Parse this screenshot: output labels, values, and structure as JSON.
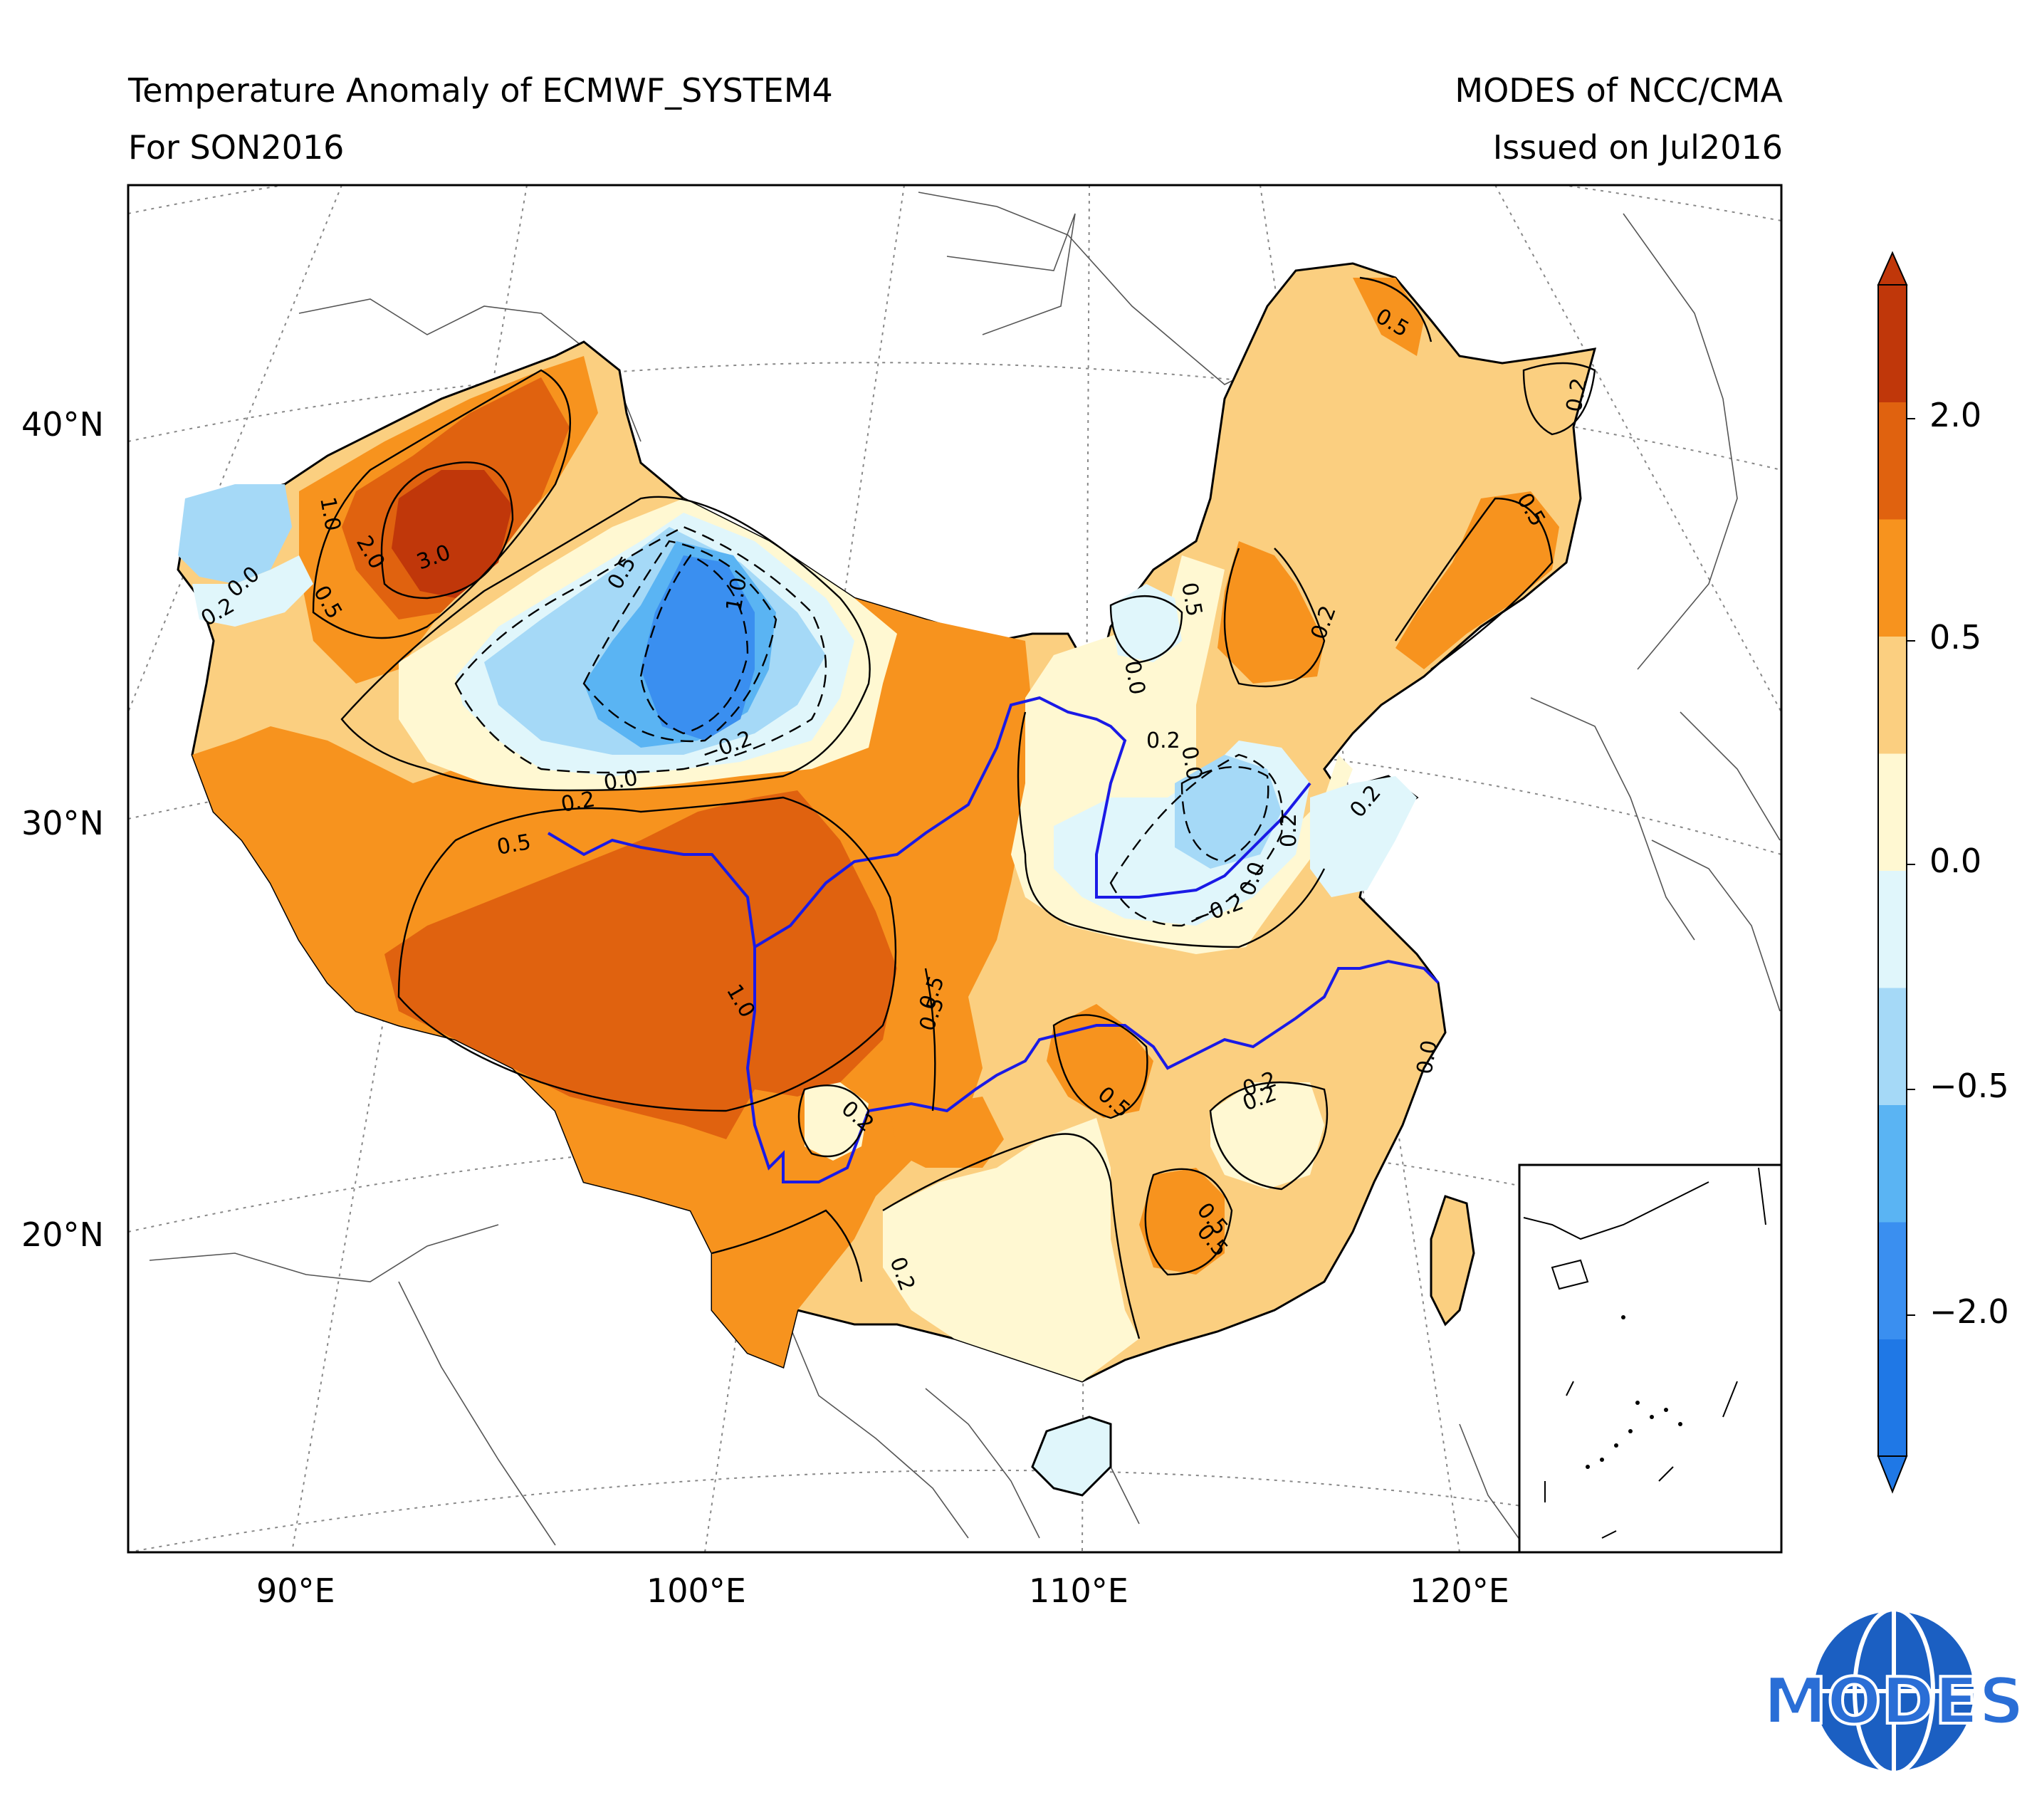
{
  "header": {
    "title_line1": "Temperature Anomaly of ECMWF_SYSTEM4",
    "title_line2": "For SON2016",
    "right_line1": "MODES of NCC/CMA",
    "right_line2": "Issued on Jul2016"
  },
  "axes": {
    "lat_labels": [
      "40°N",
      "30°N",
      "20°N"
    ],
    "lon_labels": [
      "90°E",
      "100°E",
      "110°E",
      "120°E"
    ]
  },
  "colorbar": {
    "tick_labels": [
      "2.0",
      "0.5",
      "0.0",
      "−0.5",
      "−2.0"
    ],
    "band_colors": [
      "#1f78e6",
      "#3a8ff0",
      "#5ab4f3",
      "#a5d9f7",
      "#e0f6fb",
      "#fff8d2",
      "#fbcf80",
      "#f7931e",
      "#e0620f",
      "#c0370a"
    ]
  },
  "contour_labels": [
    "3.0",
    "2.0",
    "1.0",
    "0.5",
    "0.2",
    "0.0",
    "−0.2",
    "0.5",
    "1.0",
    "0.5",
    "0.2",
    "0.0",
    "1.0",
    "0.5",
    "0.2",
    "0.2",
    "0.5",
    "0.5",
    "0.2",
    "0.0",
    "−0.2",
    "0.0",
    "0.2",
    "0.0",
    "0.5",
    "0.2",
    "0.5",
    "0.2",
    "0.5",
    "0.2",
    "0.5",
    "0.2",
    "0.5",
    "0.0",
    "0.2"
  ],
  "colors": {
    "river": "#1a1ae6",
    "frame": "#000000"
  },
  "logo": {
    "text": "MODES"
  }
}
